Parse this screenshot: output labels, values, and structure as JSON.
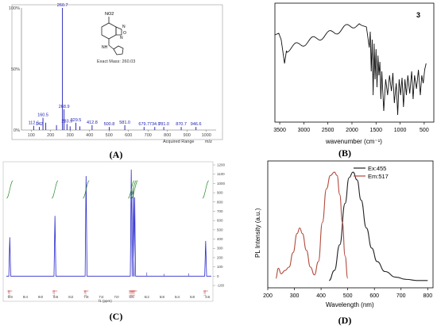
{
  "captions": {
    "a": "(A)",
    "b": "(B)",
    "c": "(C)",
    "d": "(D)"
  },
  "chart_data": [
    {
      "id": "A",
      "type": "bar",
      "title": "",
      "xlabel": "Acquired Range",
      "xunit": "m/z",
      "xlim": [
        50,
        1050
      ],
      "ylim": [
        0,
        100
      ],
      "yticks": [
        "0%",
        "50%",
        "100%"
      ],
      "xticks": [
        100,
        200,
        300,
        400,
        500,
        600,
        700,
        800,
        900,
        1000
      ],
      "structure_labels": {
        "substituent": "NO2",
        "amine": "NH",
        "ring_o": "O",
        "n1": "N",
        "n2": "N"
      },
      "annotation": "Exact Mass: 260.03",
      "peaks": [
        {
          "x": 112.6,
          "y": 3.5,
          "label": "112.6"
        },
        {
          "x": 142,
          "y": 2.5,
          "label": "142"
        },
        {
          "x": 160.5,
          "y": 10,
          "label": "160.5"
        },
        {
          "x": 175,
          "y": 6,
          "label": ""
        },
        {
          "x": 230,
          "y": 4,
          "label": ""
        },
        {
          "x": 260.7,
          "y": 100,
          "label": "260.7"
        },
        {
          "x": 268.9,
          "y": 17,
          "label": "268.9"
        },
        {
          "x": 283.9,
          "y": 5,
          "label": "283.9"
        },
        {
          "x": 300,
          "y": 3,
          "label": ""
        },
        {
          "x": 329.5,
          "y": 6,
          "label": "329.5"
        },
        {
          "x": 350,
          "y": 3,
          "label": ""
        },
        {
          "x": 412.8,
          "y": 4,
          "label": "412.8"
        },
        {
          "x": 500.8,
          "y": 2.5,
          "label": "500.8"
        },
        {
          "x": 581.0,
          "y": 4,
          "label": "581.0"
        },
        {
          "x": 679.7,
          "y": 2.5,
          "label": "679.7"
        },
        {
          "x": 734.9,
          "y": 2.5,
          "label": "734.9"
        },
        {
          "x": 781.0,
          "y": 2.5,
          "label": "781.0"
        },
        {
          "x": 870.7,
          "y": 2.5,
          "label": "870.7"
        },
        {
          "x": 946.6,
          "y": 2.5,
          "label": "946.6"
        }
      ]
    },
    {
      "id": "B",
      "type": "line",
      "title": "",
      "label": "3",
      "xlabel": "wavenumber (cm⁻¹)",
      "xlim": [
        3600,
        300
      ],
      "xticks": [
        3500,
        3000,
        2500,
        2000,
        1500,
        1000,
        500
      ],
      "ylim": [
        0,
        100
      ]
    },
    {
      "id": "C",
      "type": "line",
      "title": "",
      "xlabel": "f1 (ppm)",
      "xlim": [
        9.9,
        4.5
      ],
      "xticks": [
        "9.8",
        "9.4",
        "9.0",
        "8.6",
        "8.2",
        "7.8",
        "7.4",
        "7.0",
        "6.6",
        "6.2",
        "5.8",
        "5.4",
        "5.0",
        "4.6"
      ],
      "ylim": [
        -100,
        1200
      ],
      "yticks": [
        -100,
        0,
        100,
        200,
        300,
        400,
        500,
        600,
        700,
        800,
        900,
        1000,
        1100,
        1200
      ],
      "peaks": [
        {
          "x": 9.81,
          "y": 420,
          "integral": "1.00"
        },
        {
          "x": 8.62,
          "y": 650,
          "integral": "1.03"
        },
        {
          "x": 7.8,
          "y": 1080,
          "integral": "1.00"
        },
        {
          "x": 6.61,
          "y": 1150,
          "integral": "1.04"
        },
        {
          "x": 6.56,
          "y": 950,
          "integral": "0.99"
        },
        {
          "x": 6.52,
          "y": 850,
          "integral": "1.03"
        },
        {
          "x": 4.65,
          "y": 380,
          "integral": "1.93"
        }
      ]
    },
    {
      "id": "D",
      "type": "line",
      "title": "",
      "xlabel": "Wavelength (nm)",
      "ylabel": "PL Intensity (a.u.)",
      "xlim": [
        200,
        820
      ],
      "xticks": [
        200,
        300,
        400,
        500,
        600,
        700,
        800
      ],
      "ylim": [
        0,
        1.1
      ],
      "series": [
        {
          "name": "Ex:455",
          "color": "#222222",
          "x": [
            430,
            450,
            470,
            490,
            505,
            520,
            535,
            550,
            570,
            590,
            610,
            640,
            680,
            720,
            760,
            800
          ],
          "y": [
            0.03,
            0.12,
            0.35,
            0.72,
            0.95,
            1.0,
            0.93,
            0.75,
            0.5,
            0.32,
            0.2,
            0.11,
            0.06,
            0.04,
            0.03,
            0.03
          ]
        },
        {
          "name": "Em:517",
          "color": "#b24a3c",
          "x": [
            230,
            240,
            250,
            265,
            280,
            295,
            310,
            320,
            330,
            345,
            360,
            375,
            390,
            405,
            420,
            435,
            450,
            460,
            470,
            480,
            490,
            500
          ],
          "y": [
            0.05,
            0.14,
            0.09,
            0.12,
            0.15,
            0.28,
            0.45,
            0.5,
            0.45,
            0.3,
            0.15,
            0.08,
            0.2,
            0.55,
            0.85,
            0.97,
            1.0,
            0.97,
            0.8,
            0.55,
            0.25,
            0.05
          ]
        }
      ]
    }
  ]
}
